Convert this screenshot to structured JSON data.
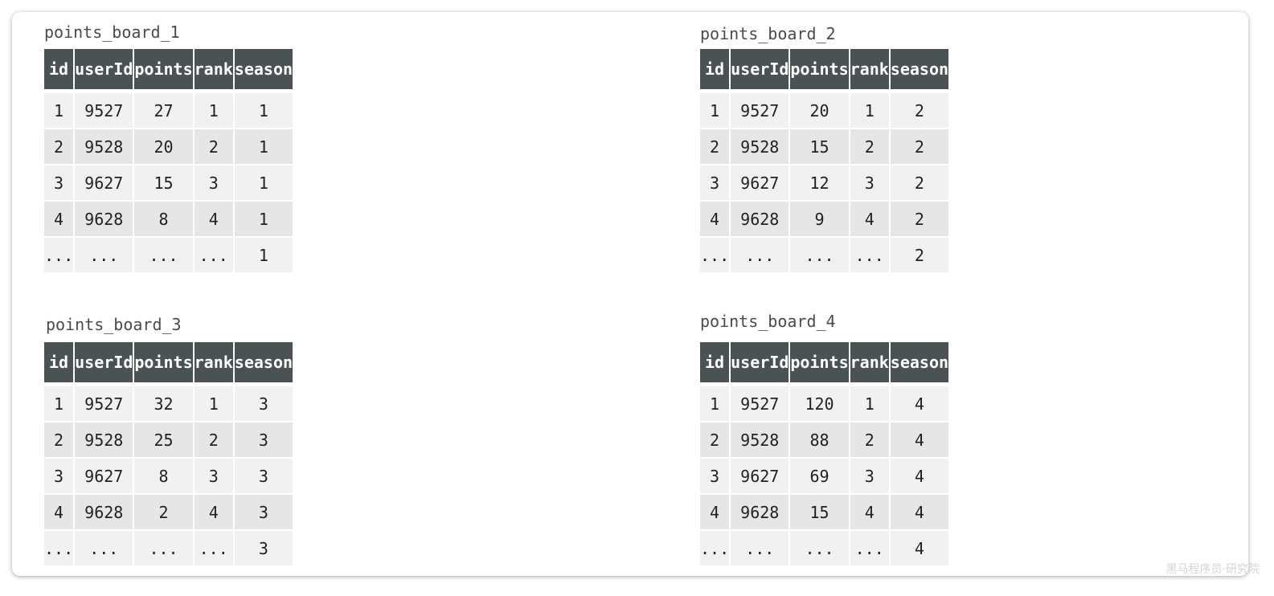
{
  "columns": [
    "id",
    "userId",
    "points",
    "rank",
    "season"
  ],
  "boards": [
    {
      "title": "points_board_1",
      "rows": [
        [
          "1",
          "9527",
          "27",
          "1",
          "1"
        ],
        [
          "2",
          "9528",
          "20",
          "2",
          "1"
        ],
        [
          "3",
          "9627",
          "15",
          "3",
          "1"
        ],
        [
          "4",
          "9628",
          "8",
          "4",
          "1"
        ],
        [
          "...",
          "...",
          "...",
          "...",
          "1"
        ]
      ]
    },
    {
      "title": "points_board_2",
      "rows": [
        [
          "1",
          "9527",
          "20",
          "1",
          "2"
        ],
        [
          "2",
          "9528",
          "15",
          "2",
          "2"
        ],
        [
          "3",
          "9627",
          "12",
          "3",
          "2"
        ],
        [
          "4",
          "9628",
          "9",
          "4",
          "2"
        ],
        [
          "...",
          "...",
          "...",
          "...",
          "2"
        ]
      ]
    },
    {
      "title": "points_board_3",
      "rows": [
        [
          "1",
          "9527",
          "32",
          "1",
          "3"
        ],
        [
          "2",
          "9528",
          "25",
          "2",
          "3"
        ],
        [
          "3",
          "9627",
          "8",
          "3",
          "3"
        ],
        [
          "4",
          "9628",
          "2",
          "4",
          "3"
        ],
        [
          "...",
          "...",
          "...",
          "...",
          "3"
        ]
      ]
    },
    {
      "title": "points_board_4",
      "rows": [
        [
          "1",
          "9527",
          "120",
          "1",
          "4"
        ],
        [
          "2",
          "9528",
          "88",
          "2",
          "4"
        ],
        [
          "3",
          "9627",
          "69",
          "3",
          "4"
        ],
        [
          "4",
          "9628",
          "15",
          "4",
          "4"
        ],
        [
          "...",
          "...",
          "...",
          "...",
          "4"
        ]
      ]
    }
  ],
  "watermark": "黑马程序员·研究院",
  "colors": {
    "header_bg": "#4b5253",
    "header_text": "#ffffff",
    "row_light": "#f1f1f1",
    "row_dark": "#e6e6e6"
  }
}
